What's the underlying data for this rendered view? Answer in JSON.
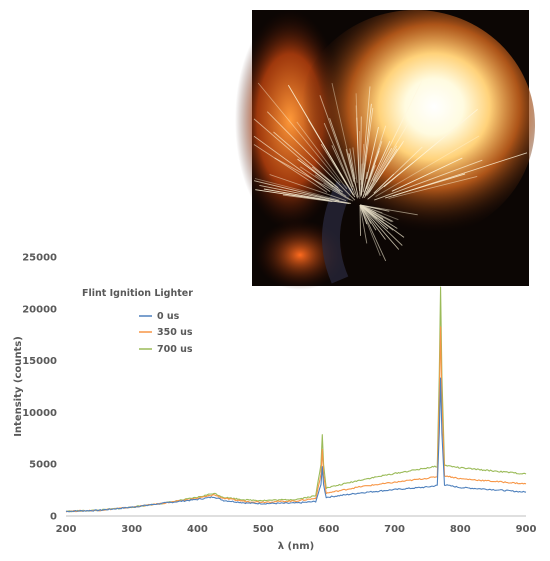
{
  "chart_data": {
    "type": "line",
    "title": "Flint Ignition Lighter",
    "xlabel": "λ (nm)",
    "ylabel": "Intensity (counts)",
    "xlim": [
      200,
      900
    ],
    "ylim": [
      0,
      25000
    ],
    "x_ticks": [
      "200",
      "300",
      "400",
      "500",
      "600",
      "700",
      "800",
      "900"
    ],
    "y_ticks": [
      "0",
      "5000",
      "10000",
      "15000",
      "20000",
      "25000"
    ],
    "grid": false,
    "legend_position": "upper-left",
    "series": [
      {
        "name": "0 us",
        "color": "#4f81bd",
        "points": [
          [
            200,
            450
          ],
          [
            250,
            550
          ],
          [
            300,
            850
          ],
          [
            350,
            1250
          ],
          [
            400,
            1600
          ],
          [
            425,
            1850
          ],
          [
            440,
            1500
          ],
          [
            475,
            1250
          ],
          [
            500,
            1200
          ],
          [
            550,
            1250
          ],
          [
            580,
            1400
          ],
          [
            588,
            3000
          ],
          [
            590,
            4800
          ],
          [
            592,
            3000
          ],
          [
            596,
            1800
          ],
          [
            650,
            2250
          ],
          [
            700,
            2550
          ],
          [
            750,
            2800
          ],
          [
            765,
            2950
          ],
          [
            768,
            8000
          ],
          [
            770,
            13300
          ],
          [
            772,
            8000
          ],
          [
            776,
            3000
          ],
          [
            800,
            2750
          ],
          [
            850,
            2550
          ],
          [
            900,
            2300
          ]
        ]
      },
      {
        "name": "350 us",
        "color": "#f79646",
        "points": [
          [
            200,
            450
          ],
          [
            250,
            550
          ],
          [
            300,
            850
          ],
          [
            350,
            1250
          ],
          [
            400,
            1700
          ],
          [
            425,
            2050
          ],
          [
            440,
            1700
          ],
          [
            475,
            1400
          ],
          [
            500,
            1350
          ],
          [
            550,
            1450
          ],
          [
            580,
            1700
          ],
          [
            588,
            4000
          ],
          [
            590,
            6400
          ],
          [
            592,
            4000
          ],
          [
            596,
            2200
          ],
          [
            650,
            2850
          ],
          [
            700,
            3250
          ],
          [
            750,
            3650
          ],
          [
            765,
            3800
          ],
          [
            768,
            11000
          ],
          [
            770,
            18300
          ],
          [
            772,
            11000
          ],
          [
            776,
            3900
          ],
          [
            800,
            3600
          ],
          [
            850,
            3350
          ],
          [
            900,
            3100
          ]
        ]
      },
      {
        "name": "700 us",
        "color": "#9bbb59",
        "points": [
          [
            200,
            450
          ],
          [
            250,
            550
          ],
          [
            300,
            850
          ],
          [
            350,
            1250
          ],
          [
            400,
            1800
          ],
          [
            425,
            2200
          ],
          [
            440,
            1800
          ],
          [
            475,
            1550
          ],
          [
            500,
            1500
          ],
          [
            550,
            1600
          ],
          [
            580,
            1950
          ],
          [
            588,
            5000
          ],
          [
            590,
            7900
          ],
          [
            592,
            5000
          ],
          [
            596,
            2700
          ],
          [
            650,
            3500
          ],
          [
            700,
            4100
          ],
          [
            750,
            4650
          ],
          [
            765,
            4800
          ],
          [
            768,
            13500
          ],
          [
            770,
            22100
          ],
          [
            772,
            13500
          ],
          [
            776,
            4900
          ],
          [
            800,
            4650
          ],
          [
            850,
            4350
          ],
          [
            900,
            4050
          ]
        ]
      }
    ]
  },
  "photo": {
    "subject": "flint-sparks-flame-photo"
  }
}
